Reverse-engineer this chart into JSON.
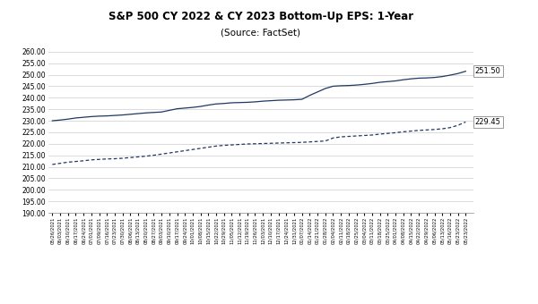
{
  "title": "S&P 500 CY 2022 & CY 2023 Bottom-Up EPS: 1-Year",
  "subtitle": "(Source: FactSet)",
  "title_fontsize": 8.5,
  "line_color": "#1F3864",
  "ylim": [
    190.0,
    260.0
  ],
  "yticks": [
    190.0,
    195.0,
    200.0,
    205.0,
    210.0,
    215.0,
    220.0,
    225.0,
    230.0,
    235.0,
    240.0,
    245.0,
    250.0,
    255.0,
    260.0
  ],
  "end_label_2022": "251.50",
  "end_label_2023": "229.45",
  "dates": [
    "05/26/2021",
    "06/03/2021",
    "06/10/2021",
    "06/17/2021",
    "06/24/2021",
    "07/01/2021",
    "07/09/2021",
    "07/16/2021",
    "07/23/2021",
    "07/30/2021",
    "08/06/2021",
    "08/13/2021",
    "08/20/2021",
    "08/27/2021",
    "09/03/2021",
    "09/10/2021",
    "09/17/2021",
    "09/24/2021",
    "10/01/2021",
    "10/08/2021",
    "10/15/2021",
    "10/22/2021",
    "10/29/2021",
    "11/05/2021",
    "11/12/2021",
    "11/19/2021",
    "11/26/2021",
    "12/03/2021",
    "12/10/2021",
    "12/17/2021",
    "12/24/2021",
    "12/31/2021",
    "01/07/2022",
    "01/14/2022",
    "01/21/2022",
    "01/28/2022",
    "02/04/2022",
    "02/11/2022",
    "02/18/2022",
    "02/25/2022",
    "03/04/2022",
    "03/11/2022",
    "03/18/2022",
    "03/25/2022",
    "04/01/2022",
    "04/08/2022",
    "04/15/2022",
    "04/22/2022",
    "04/29/2022",
    "05/06/2022",
    "05/13/2022",
    "05/16/2022",
    "05/23/2022",
    "05/23/2022"
  ],
  "cy2022_eps": [
    230.0,
    230.3,
    230.7,
    231.2,
    231.5,
    231.8,
    232.0,
    232.1,
    232.3,
    232.5,
    232.8,
    233.1,
    233.4,
    233.6,
    233.8,
    234.5,
    235.2,
    235.5,
    235.8,
    236.2,
    236.8,
    237.3,
    237.5,
    237.8,
    237.9,
    238.0,
    238.2,
    238.5,
    238.7,
    238.9,
    239.0,
    239.1,
    239.3,
    241.0,
    242.5,
    244.0,
    245.0,
    245.2,
    245.3,
    245.5,
    245.8,
    246.2,
    246.7,
    247.0,
    247.3,
    247.8,
    248.2,
    248.5,
    248.6,
    248.8,
    249.2,
    249.8,
    250.5,
    251.5
  ],
  "cy2023_eps": [
    211.0,
    211.5,
    212.0,
    212.3,
    212.6,
    213.0,
    213.2,
    213.4,
    213.5,
    213.7,
    214.0,
    214.3,
    214.6,
    215.0,
    215.5,
    216.0,
    216.5,
    217.0,
    217.5,
    218.0,
    218.5,
    219.0,
    219.3,
    219.5,
    219.7,
    219.9,
    220.0,
    220.1,
    220.2,
    220.3,
    220.4,
    220.5,
    220.6,
    220.8,
    221.0,
    221.2,
    222.5,
    223.0,
    223.2,
    223.4,
    223.6,
    223.8,
    224.2,
    224.5,
    224.8,
    225.2,
    225.5,
    225.8,
    226.0,
    226.2,
    226.5,
    227.0,
    228.0,
    229.45
  ]
}
